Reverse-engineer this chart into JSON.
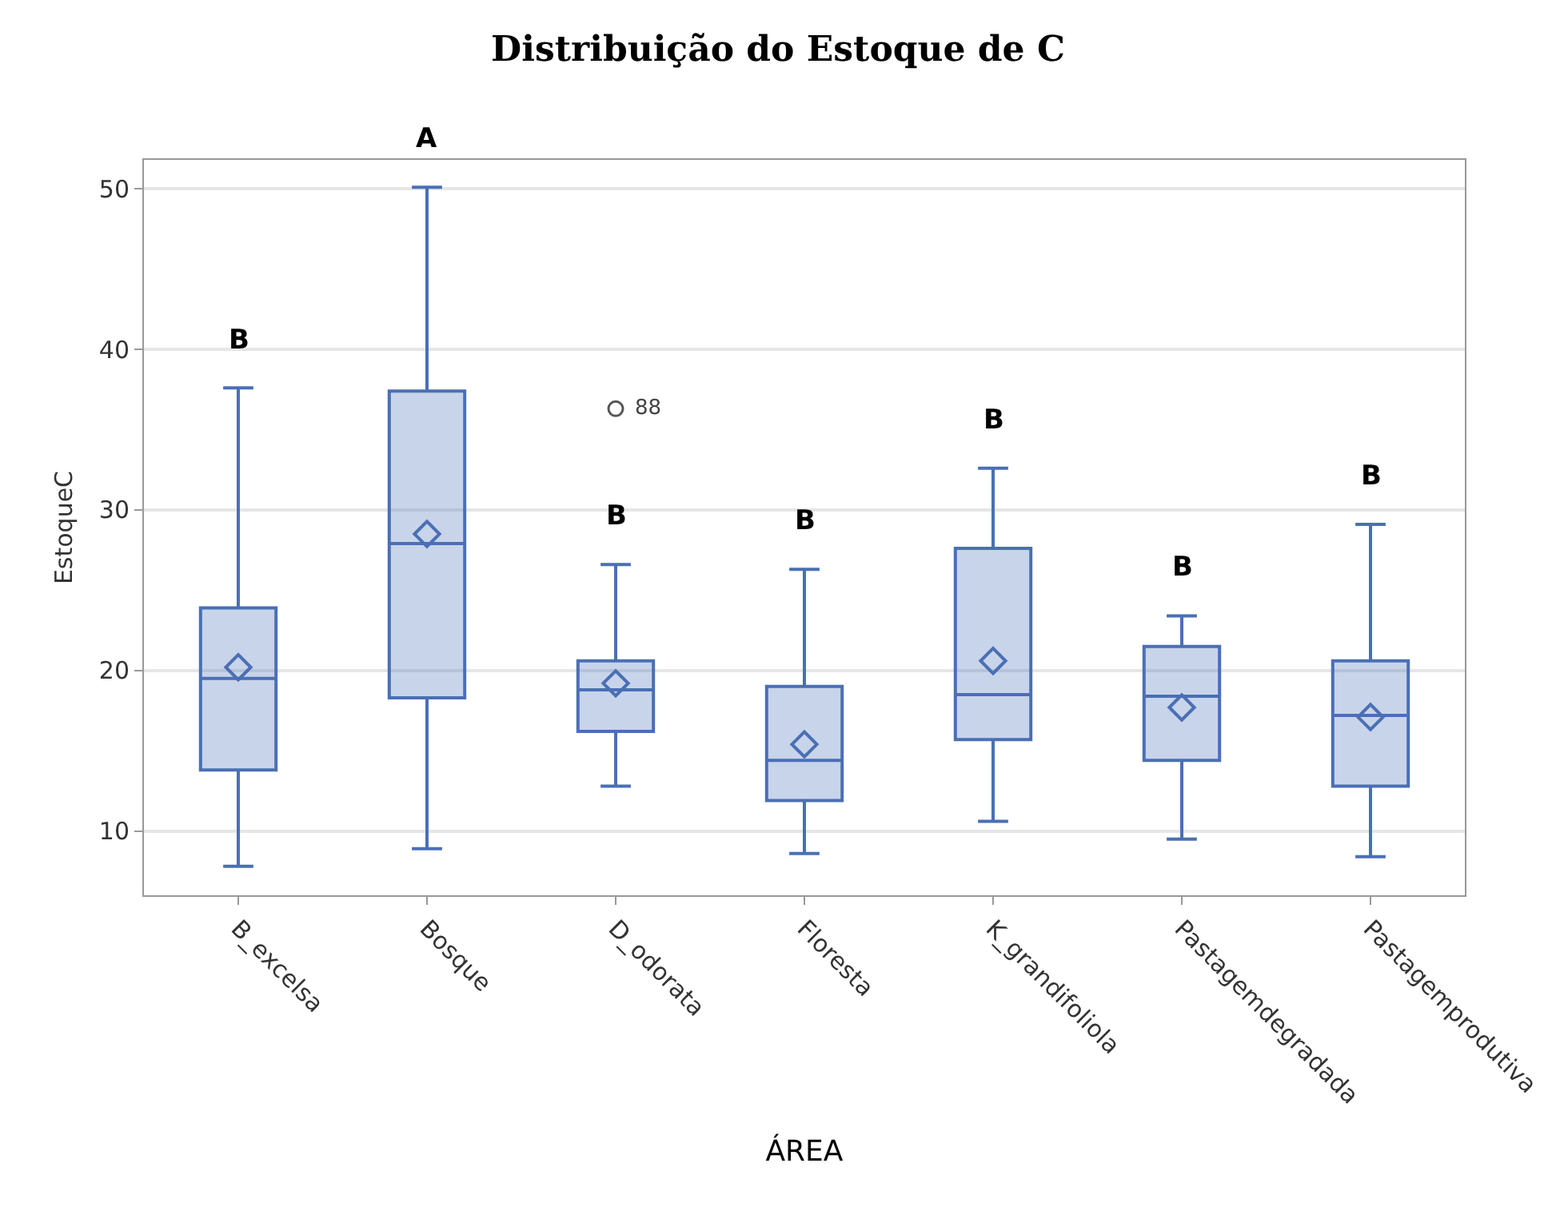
{
  "chart_data": {
    "type": "box",
    "title": "Distribuição do Estoque de C",
    "xlabel": "ÁREA",
    "ylabel": "EstoqueC",
    "categories": [
      "B_excelsa",
      "Bosque",
      "D_odorata",
      "Floresta",
      "K_grandifoliola",
      "Pastagemdegradada",
      "Pastagemprodutiva"
    ],
    "series": [
      {
        "color": "#4a6fb5",
        "value_labels": [
          "B",
          "A",
          "B",
          "B",
          "B",
          "B",
          "B"
        ],
        "boxes": [
          {
            "low": 7.8,
            "q1": 13.8,
            "median": 19.5,
            "q3": 23.9,
            "high": 37.6,
            "mean": 20.2
          },
          {
            "low": 8.9,
            "q1": 18.3,
            "median": 27.9,
            "q3": 37.4,
            "high": 50.1,
            "mean": 28.5
          },
          {
            "low": 12.8,
            "q1": 16.2,
            "median": 18.8,
            "q3": 20.6,
            "high": 26.6,
            "mean": 19.2,
            "outliers": [
              36.3
            ]
          },
          {
            "low": 8.6,
            "q1": 11.9,
            "median": 14.4,
            "q3": 19.0,
            "high": 26.3,
            "mean": 15.4
          },
          {
            "low": 10.6,
            "q1": 15.7,
            "median": 18.5,
            "q3": 27.6,
            "high": 32.6,
            "mean": 20.6
          },
          {
            "low": 9.5,
            "q1": 14.4,
            "median": 18.4,
            "q3": 21.5,
            "high": 23.4,
            "mean": 17.7
          },
          {
            "low": 8.4,
            "q1": 12.8,
            "median": 17.2,
            "q3": 20.6,
            "high": 29.1,
            "mean": 17.1
          }
        ]
      }
    ],
    "ylim": [
      6,
      51.8
    ],
    "yticks": [
      10,
      20,
      30,
      40,
      50
    ],
    "grid": "y",
    "annotations": [
      "88"
    ]
  }
}
